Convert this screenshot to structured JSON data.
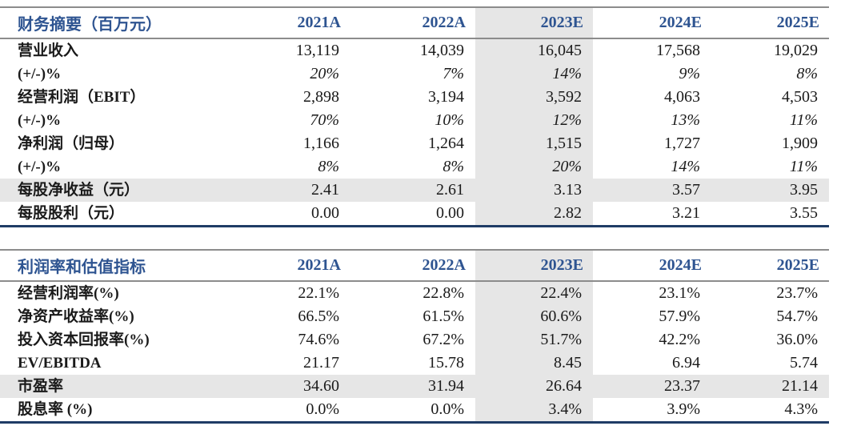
{
  "colors": {
    "header_blue": "#2e5491",
    "highlight_grey": "#e6e6e6",
    "rule_grey": "#8c8c8c",
    "rule_navy": "#1f3c66"
  },
  "tables": [
    {
      "title": "财务摘要（百万元）",
      "columns": [
        "2021A",
        "2022A",
        "2023E",
        "2024E",
        "2025E"
      ],
      "highlighted_column": "2023E",
      "rows": [
        {
          "label": "营业收入",
          "values": [
            "13,119",
            "14,039",
            "16,045",
            "17,568",
            "19,029"
          ]
        },
        {
          "label": "(+/-)%",
          "values": [
            "20%",
            "7%",
            "14%",
            "9%",
            "8%"
          ],
          "italic_values": true
        },
        {
          "label": "经营利润（EBIT）",
          "values": [
            "2,898",
            "3,194",
            "3,592",
            "4,063",
            "4,503"
          ]
        },
        {
          "label": "(+/-)%",
          "values": [
            "70%",
            "10%",
            "12%",
            "13%",
            "11%"
          ],
          "italic_values": true
        },
        {
          "label": "净利润（归母）",
          "values": [
            "1,166",
            "1,264",
            "1,515",
            "1,727",
            "1,909"
          ]
        },
        {
          "label": "(+/-)%",
          "values": [
            "8%",
            "8%",
            "20%",
            "14%",
            "11%"
          ],
          "italic_values": true
        },
        {
          "label": "每股净收益（元）",
          "values": [
            "2.41",
            "2.61",
            "3.13",
            "3.57",
            "3.95"
          ],
          "highlighted_row": true
        },
        {
          "label": "每股股利（元）",
          "values": [
            "0.00",
            "0.00",
            "2.82",
            "3.21",
            "3.55"
          ]
        }
      ]
    },
    {
      "title": "利润率和估值指标",
      "columns": [
        "2021A",
        "2022A",
        "2023E",
        "2024E",
        "2025E"
      ],
      "highlighted_column": "2023E",
      "rows": [
        {
          "label": "经营利润率(%)",
          "values": [
            "22.1%",
            "22.8%",
            "22.4%",
            "23.1%",
            "23.7%"
          ]
        },
        {
          "label": "净资产收益率(%)",
          "values": [
            "66.5%",
            "61.5%",
            "60.6%",
            "57.9%",
            "54.7%"
          ]
        },
        {
          "label": "投入资本回报率(%)",
          "values": [
            "74.6%",
            "67.2%",
            "51.7%",
            "42.2%",
            "36.0%"
          ]
        },
        {
          "label": "EV/EBITDA",
          "values": [
            "21.17",
            "15.78",
            "8.45",
            "6.94",
            "5.74"
          ]
        },
        {
          "label": "市盈率",
          "values": [
            "34.60",
            "31.94",
            "26.64",
            "23.37",
            "21.14"
          ],
          "highlighted_row": true
        },
        {
          "label": "股息率 (%)",
          "values": [
            "0.0%",
            "0.0%",
            "3.4%",
            "3.9%",
            "4.3%"
          ]
        }
      ]
    }
  ]
}
